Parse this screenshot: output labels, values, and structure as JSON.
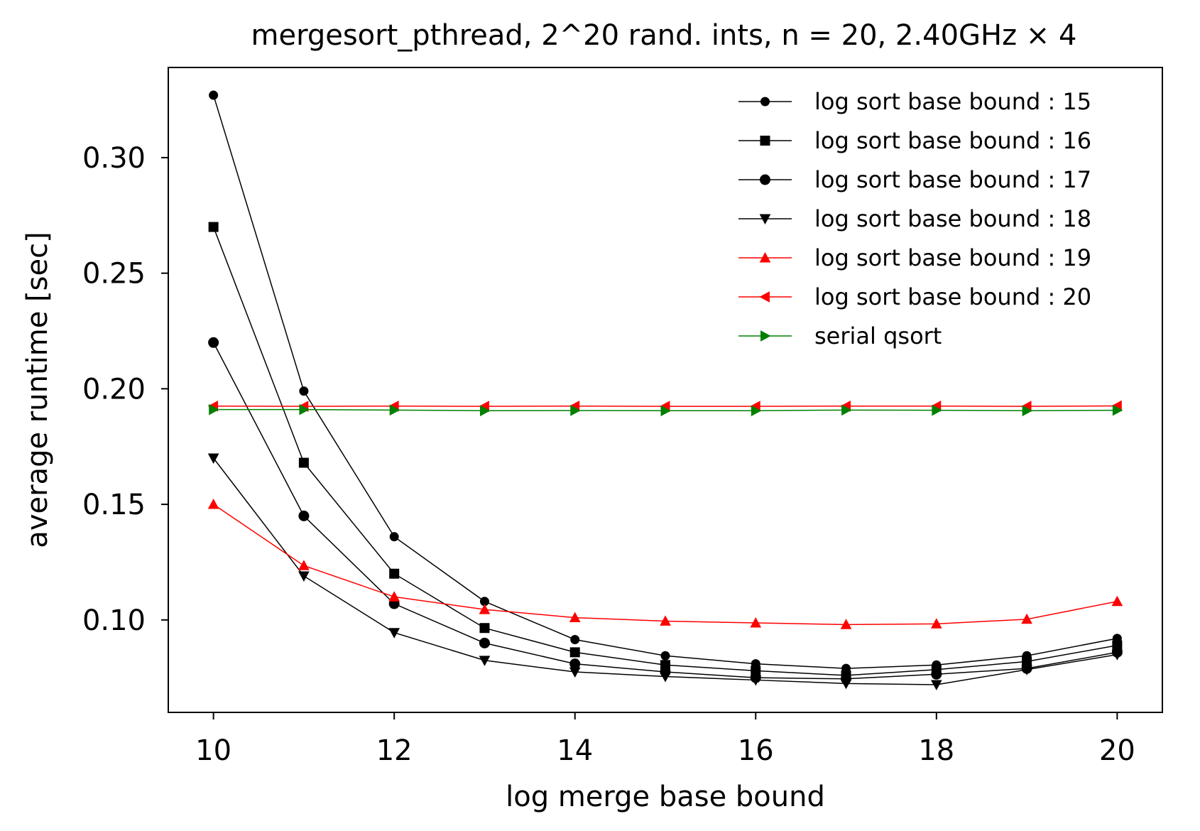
{
  "chart_data": {
    "type": "line",
    "title": "mergesort_pthread, 2^20 rand. ints, n = 20, 2.40GHz × 4",
    "xlabel": "log merge base bound",
    "ylabel": "average runtime [sec]",
    "xlim": [
      9.5,
      20.5
    ],
    "ylim": [
      0.06,
      0.339
    ],
    "xticks": [
      10,
      12,
      14,
      16,
      18,
      20
    ],
    "yticks": [
      0.1,
      0.15,
      0.2,
      0.25,
      0.3
    ],
    "xtick_labels": [
      "10",
      "12",
      "14",
      "16",
      "18",
      "20"
    ],
    "ytick_labels": [
      "0.10",
      "0.15",
      "0.20",
      "0.25",
      "0.30"
    ],
    "grid": false,
    "legend_position": "top-right",
    "x": [
      10,
      11,
      12,
      13,
      14,
      15,
      16,
      17,
      18,
      19,
      20
    ],
    "series": [
      {
        "name": "log sort base bound : 15",
        "color": "#000000",
        "marker": "circle-small",
        "values": [
          0.327,
          0.199,
          0.136,
          0.108,
          0.0915,
          0.0845,
          0.081,
          0.079,
          0.0805,
          0.0845,
          0.092
        ]
      },
      {
        "name": "log sort base bound : 16",
        "color": "#000000",
        "marker": "square",
        "values": [
          0.27,
          0.168,
          0.12,
          0.0965,
          0.086,
          0.0805,
          0.078,
          0.076,
          0.0785,
          0.082,
          0.089
        ]
      },
      {
        "name": "log sort base bound : 17",
        "color": "#000000",
        "marker": "circle",
        "values": [
          0.22,
          0.145,
          0.107,
          0.09,
          0.081,
          0.0775,
          0.075,
          0.0745,
          0.0765,
          0.079,
          0.086
        ]
      },
      {
        "name": "log sort base bound : 18",
        "color": "#000000",
        "marker": "triangle-down",
        "values": [
          0.17,
          0.119,
          0.0945,
          0.0825,
          0.0775,
          0.0755,
          0.074,
          0.0725,
          0.072,
          0.0785,
          0.085
        ]
      },
      {
        "name": "log sort base bound : 19",
        "color": "#ff0000",
        "marker": "triangle-up",
        "values": [
          0.15,
          0.1235,
          0.11,
          0.1045,
          0.101,
          0.0995,
          0.0987,
          0.098,
          0.0983,
          0.1003,
          0.108
        ]
      },
      {
        "name": "log sort base bound : 20",
        "color": "#ff0000",
        "marker": "triangle-left",
        "values": [
          0.1925,
          0.1924,
          0.1925,
          0.1924,
          0.1925,
          0.1924,
          0.1924,
          0.1925,
          0.1925,
          0.1924,
          0.1926
        ]
      },
      {
        "name": "serial qsort",
        "color": "#008000",
        "marker": "triangle-right",
        "values": [
          0.191,
          0.191,
          0.1908,
          0.1905,
          0.1906,
          0.1905,
          0.1905,
          0.1908,
          0.1907,
          0.1905,
          0.1907
        ]
      }
    ]
  }
}
